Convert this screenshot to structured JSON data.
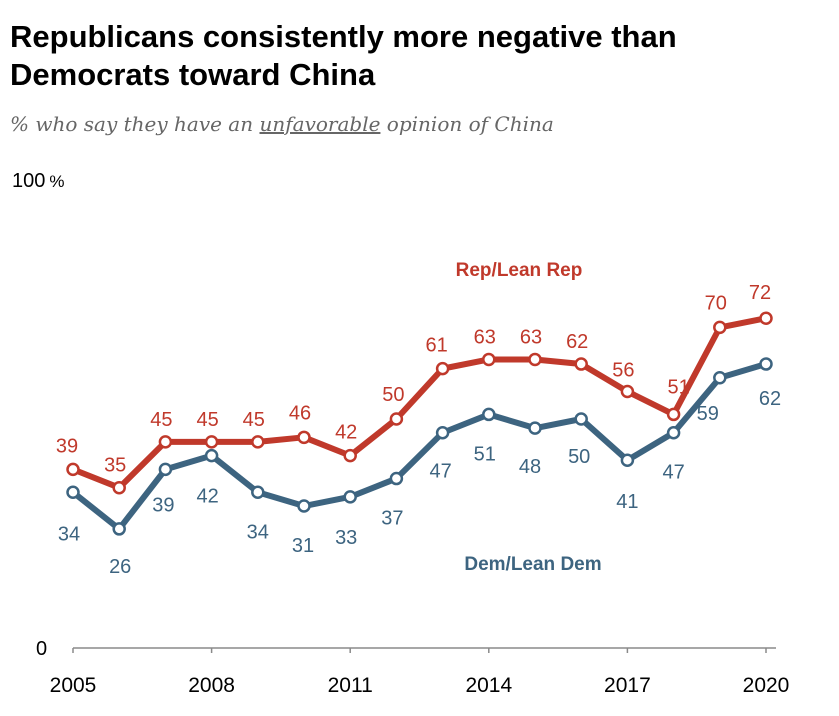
{
  "title": "Republicans consistently more negative than Democrats toward China",
  "subtitle": {
    "prefix": "% who say they have an ",
    "emphasis": "unfavorable",
    "suffix": " opinion of China"
  },
  "colors": {
    "rep": "#c0392b",
    "dem": "#3d6480",
    "axis": "#888888"
  },
  "chart_data": {
    "type": "line",
    "x": [
      2005,
      2006,
      2007,
      2008,
      2009,
      2010,
      2011,
      2012,
      2013,
      2014,
      2015,
      2016,
      2017,
      2018,
      2019,
      2020
    ],
    "series": [
      {
        "name": "Rep/Lean Rep",
        "values": [
          39,
          35,
          45,
          45,
          45,
          46,
          42,
          50,
          61,
          63,
          63,
          62,
          56,
          51,
          70,
          72
        ]
      },
      {
        "name": "Dem/Lean Dem",
        "values": [
          34,
          26,
          39,
          42,
          34,
          31,
          33,
          37,
          47,
          51,
          48,
          50,
          41,
          47,
          59,
          62
        ]
      }
    ],
    "x_ticks": [
      "2005",
      "2008",
      "2011",
      "2014",
      "2017",
      "2020"
    ],
    "y_top_label": "100",
    "y_top_unit": "%",
    "y_bottom_label": "0",
    "ylim": [
      0,
      100
    ],
    "grid": false,
    "legend": "inline labels"
  }
}
